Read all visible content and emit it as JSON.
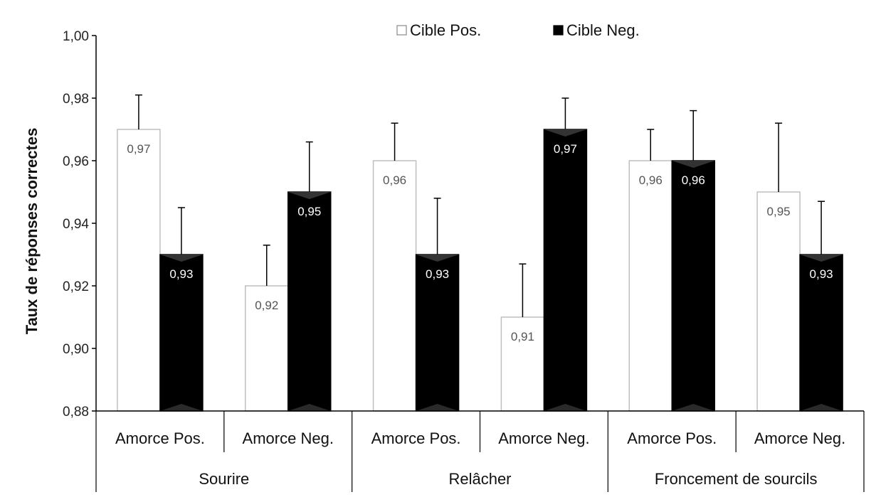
{
  "chart_data": {
    "type": "bar",
    "ylabel": "Taux de réponses correctes",
    "ylim": [
      0.88,
      1.0
    ],
    "yticks": [
      "0,88",
      "0,90",
      "0,92",
      "0,94",
      "0,96",
      "0,98",
      "1,00"
    ],
    "ytick_values": [
      0.88,
      0.9,
      0.92,
      0.94,
      0.96,
      0.98,
      1.0
    ],
    "categories": [
      "Amorce Pos.",
      "Amorce Neg.",
      "Amorce Pos.",
      "Amorce Neg.",
      "Amorce Pos.",
      "Amorce Neg."
    ],
    "groups": [
      {
        "label": "Sourire",
        "span": 2
      },
      {
        "label": "Relâcher",
        "span": 2
      },
      {
        "label": "Froncement de sourcils",
        "span": 2
      }
    ],
    "series": [
      {
        "name": "Cible Pos.",
        "color": "#ffffff",
        "stroke": "#bfbfbf",
        "values": [
          0.97,
          0.92,
          0.96,
          0.91,
          0.96,
          0.95
        ],
        "labels": [
          "0,97",
          "0,92",
          "0,96",
          "0,91",
          "0,96",
          "0,95"
        ],
        "error": [
          0.011,
          0.013,
          0.012,
          0.017,
          0.01,
          0.022
        ]
      },
      {
        "name": "Cible Neg.",
        "color": "#000000",
        "stroke": "#000000",
        "values": [
          0.93,
          0.95,
          0.93,
          0.97,
          0.96,
          0.93
        ],
        "labels": [
          "0,93",
          "0,95",
          "0,93",
          "0,97",
          "0,96",
          "0,93"
        ],
        "error": [
          0.015,
          0.016,
          0.018,
          0.01,
          0.016,
          0.017
        ]
      }
    ],
    "legend": "top-center",
    "grid": false
  }
}
